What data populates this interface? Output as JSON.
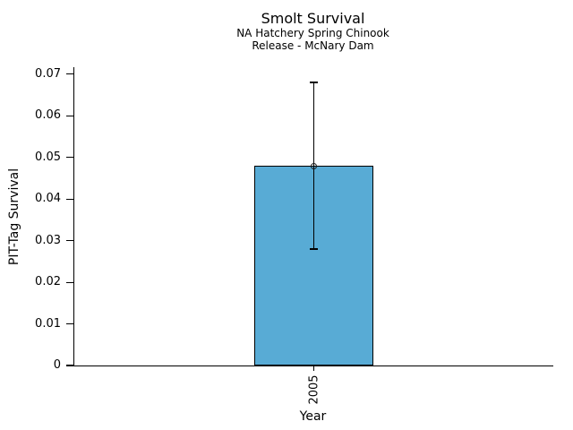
{
  "chart_data": {
    "type": "bar",
    "title": "Smolt Survival",
    "subtitle_line1": "NA Hatchery Spring Chinook",
    "subtitle_line2": "Release - McNary Dam",
    "xlabel": "Year",
    "ylabel": "PIT-Tag Survival",
    "categories": [
      "2005"
    ],
    "values": [
      0.048
    ],
    "error_low": [
      0.028
    ],
    "error_high": [
      0.068
    ],
    "marker": "open-circle",
    "ytick_values": [
      0,
      0.01,
      0.02,
      0.03,
      0.04,
      0.05,
      0.06,
      0.07
    ],
    "ytick_labels": [
      "0",
      "0.01",
      "0.02",
      "0.03",
      "0.04",
      "0.05",
      "0.06",
      "0.07"
    ],
    "ylim": [
      0,
      0.0717
    ],
    "grid": false,
    "legend": null,
    "bar_color": "#58ABD5",
    "bar_edge_color": "#000000",
    "error_color": "#000000",
    "text_color": "#000000",
    "background_color": "#ffffff"
  }
}
